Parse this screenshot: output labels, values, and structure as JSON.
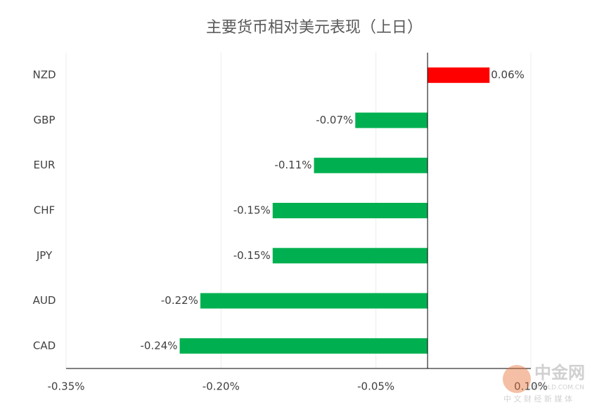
{
  "chart_data": {
    "type": "hbar",
    "title": "主要货币相对美元表现（上日）",
    "categories": [
      "NZD",
      "GBP",
      "EUR",
      "CHF",
      "JPY",
      "AUD",
      "CAD"
    ],
    "values": [
      0.06,
      -0.07,
      -0.11,
      -0.15,
      -0.15,
      -0.22,
      -0.24
    ],
    "value_labels": [
      "0.06%",
      "-0.07%",
      "-0.11%",
      "-0.15%",
      "-0.15%",
      "-0.22%",
      "-0.24%"
    ],
    "colors": [
      "#ff0000",
      "#00b050",
      "#00b050",
      "#00b050",
      "#00b050",
      "#00b050",
      "#00b050"
    ],
    "xlim": [
      -0.35,
      0.1
    ],
    "xticks": [
      {
        "value": -0.35,
        "label": "-0.35%"
      },
      {
        "value": -0.2,
        "label": "-0.20%"
      },
      {
        "value": -0.05,
        "label": "-0.05%"
      },
      {
        "value": 0.1,
        "label": "0.10%"
      }
    ],
    "grid": true
  },
  "watermark": {
    "name": "中金网",
    "url": "CNGOLD.COM.CN",
    "tagline": "中 文 财 经 新 媒 体"
  }
}
